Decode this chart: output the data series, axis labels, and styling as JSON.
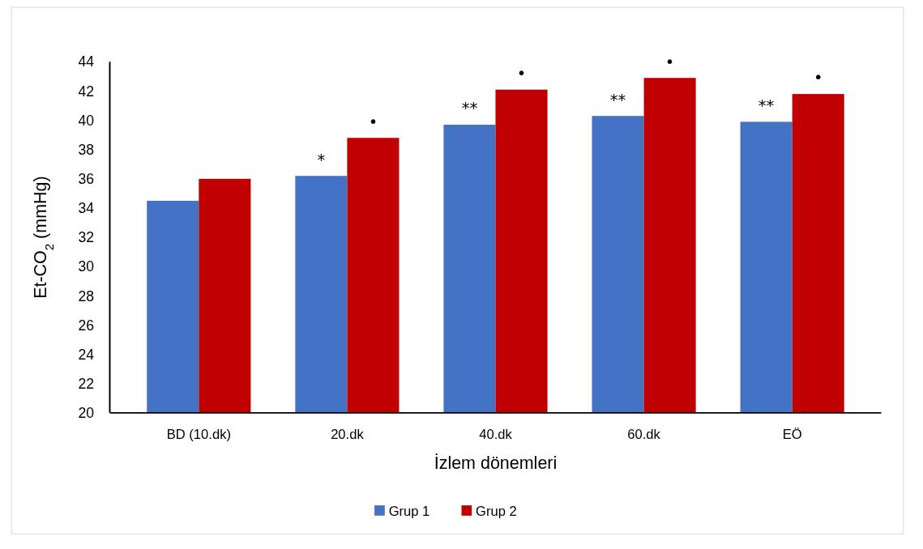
{
  "chart_data": {
    "type": "bar",
    "categories": [
      "BD (10.dk)",
      "20.dk",
      "40.dk",
      "60.dk",
      "EÖ"
    ],
    "series": [
      {
        "name": "Grup 1",
        "color": "#4472c4",
        "values": [
          34.5,
          36.2,
          39.7,
          40.3,
          39.9
        ]
      },
      {
        "name": "Grup 2",
        "color": "#c00000",
        "values": [
          36.0,
          38.8,
          42.1,
          42.9,
          41.8
        ]
      }
    ],
    "ylim": [
      20,
      44
    ],
    "yticks": [
      20,
      22,
      24,
      26,
      28,
      30,
      32,
      34,
      36,
      38,
      40,
      42,
      44
    ],
    "xlabel": "İzlem dönemleri",
    "ylabel": "Et-CO$_{2}$ (mmHg)",
    "legend": "bottom",
    "grid": false,
    "annotations": [
      {
        "text": "*",
        "x": "20.dk",
        "y": 36.2
      },
      {
        "text": "•",
        "x": "20.dk",
        "y": 38.8
      },
      {
        "text": "**",
        "x": "40.dk",
        "y": 39.7
      },
      {
        "text": "•",
        "x": "40.dk",
        "y": 42.1
      },
      {
        "text": "**",
        "x": "60.dk",
        "y": 40.3
      },
      {
        "text": "•",
        "x": "60.dk",
        "y": 42.9
      },
      {
        "text": "**",
        "x": "EÖ",
        "y": 39.9
      },
      {
        "text": "•",
        "x": "EÖ",
        "y": 41.8
      }
    ]
  }
}
